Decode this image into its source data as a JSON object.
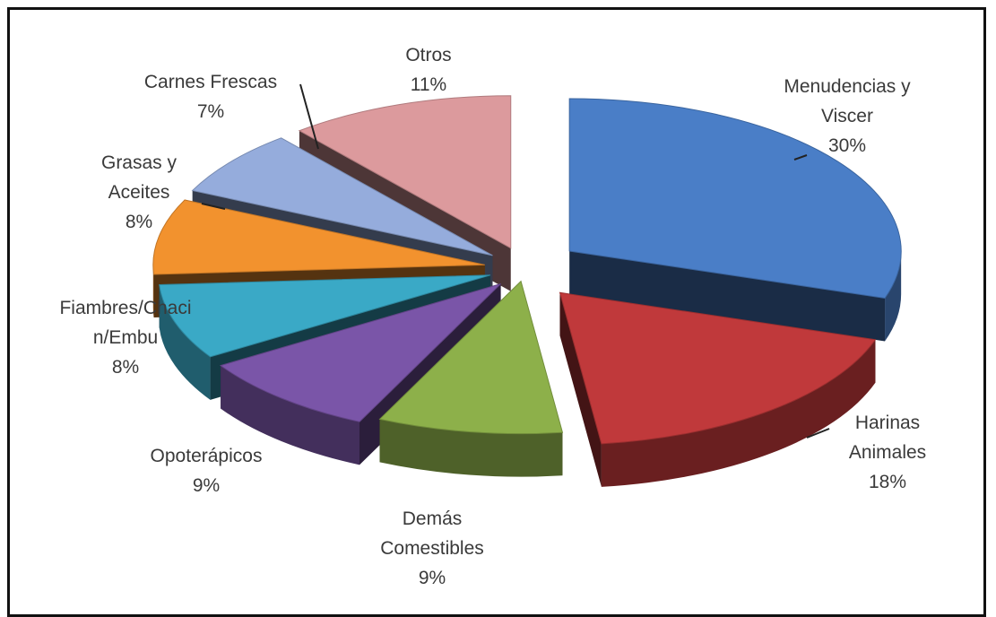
{
  "chart_data": {
    "type": "pie",
    "title": "",
    "exploded": true,
    "style": "3d",
    "slices": [
      {
        "label_lines": [
          "Menudencias y",
          "Viscer"
        ],
        "pct_text": "30%",
        "value": 30,
        "color": "#4a7ec7"
      },
      {
        "label_lines": [
          "Harinas",
          "Animales"
        ],
        "pct_text": "18%",
        "value": 18,
        "color": "#c0393b"
      },
      {
        "label_lines": [
          "Demás",
          "Comestibles"
        ],
        "pct_text": "9%",
        "value": 9,
        "color": "#8db04a"
      },
      {
        "label_lines": [
          "Opoterápicos"
        ],
        "pct_text": "9%",
        "value": 9,
        "color": "#7a55a8"
      },
      {
        "label_lines": [
          "Fiambres/Chaci",
          "n/Embu"
        ],
        "pct_text": "8%",
        "value": 8,
        "color": "#3aa9c6"
      },
      {
        "label_lines": [
          "Grasas y",
          "Aceites"
        ],
        "pct_text": "8%",
        "value": 8,
        "color": "#f2922e"
      },
      {
        "label_lines": [
          "Carnes Frescas"
        ],
        "pct_text": "7%",
        "value": 7,
        "color": "#95acdc"
      },
      {
        "label_lines": [
          "Otros"
        ],
        "pct_text": "11%",
        "value": 11,
        "color": "#dc9a9d"
      }
    ]
  }
}
